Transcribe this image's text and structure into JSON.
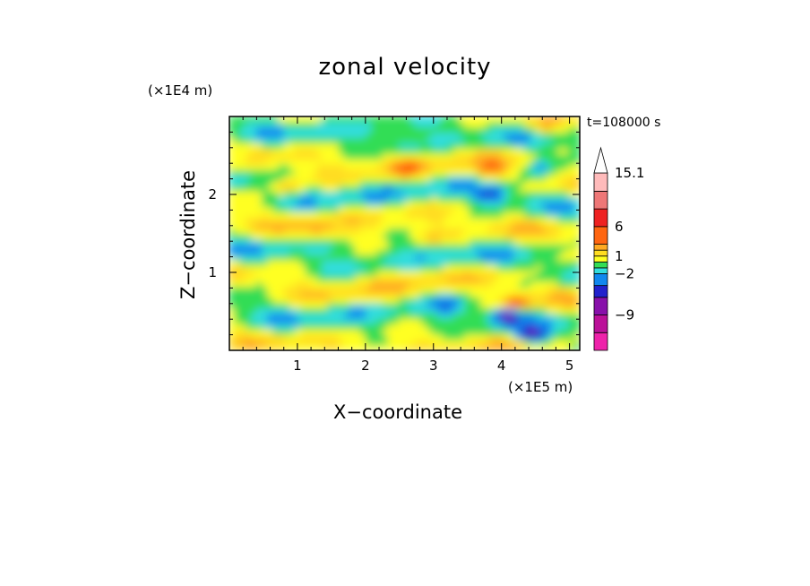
{
  "chart_data": {
    "type": "heatmap",
    "title": "zonal velocity",
    "xlabel": "X−coordinate",
    "ylabel": "Z−coordinate",
    "x_unit_label": "(×1E5 m)",
    "z_unit_label": "(×1E4 m)",
    "time_label": "t=108000 s",
    "xlim": [
      0,
      5.15
    ],
    "ylim": [
      0,
      3.0
    ],
    "x_ticks": [
      {
        "value": 1,
        "label": "1"
      },
      {
        "value": 2,
        "label": "2"
      },
      {
        "value": 3,
        "label": "3"
      },
      {
        "value": 4,
        "label": "4"
      },
      {
        "value": 5,
        "label": "5"
      }
    ],
    "z_ticks": [
      {
        "value": 1,
        "label": "1"
      },
      {
        "value": 2,
        "label": "2"
      }
    ],
    "colorbar": {
      "levels": [
        -15,
        -12,
        -9,
        -6,
        -4,
        -2,
        -1,
        0,
        1,
        2,
        3,
        6,
        9,
        12,
        15.1
      ],
      "colors": [
        "#ee22aa",
        "#bb1199",
        "#8811aa",
        "#2222cc",
        "#1188ee",
        "#33dddd",
        "#33dd55",
        "#ffff22",
        "#ffdd22",
        "#ffaa22",
        "#ff6611",
        "#ee2222",
        "#ee7777",
        "#ffbbbb"
      ],
      "labels": [
        {
          "value": -9,
          "label": "−9"
        },
        {
          "value": -2,
          "label": "−2"
        },
        {
          "value": 1,
          "label": "1"
        },
        {
          "value": 6,
          "label": "6"
        },
        {
          "value": 15.1,
          "label": "15.1"
        }
      ]
    },
    "features": [
      {
        "x": 2.6,
        "z": 2.35,
        "value": 2.5
      },
      {
        "x": 3.85,
        "z": 2.0,
        "value": -5
      },
      {
        "x": 3.85,
        "z": 2.3,
        "value": 2.5
      },
      {
        "x": 4.6,
        "z": 2.85,
        "value": 2.5
      },
      {
        "x": 4.55,
        "z": 2.35,
        "value": -2.5
      },
      {
        "x": 0.1,
        "z": 2.5,
        "value": -2.5
      },
      {
        "x": 2.6,
        "z": 2.6,
        "value": -1.5
      },
      {
        "x": 0.85,
        "z": 2.1,
        "value": 2.5
      },
      {
        "x": 1.3,
        "z": 1.55,
        "value": 1.5
      },
      {
        "x": 2.95,
        "z": 1.45,
        "value": 1.5
      },
      {
        "x": 3.2,
        "z": 0.6,
        "value": -2.5
      },
      {
        "x": 4.1,
        "z": 0.45,
        "value": -6
      },
      {
        "x": 4.45,
        "z": 0.2,
        "value": -6
      },
      {
        "x": 4.2,
        "z": 0.6,
        "value": 4
      }
    ]
  }
}
